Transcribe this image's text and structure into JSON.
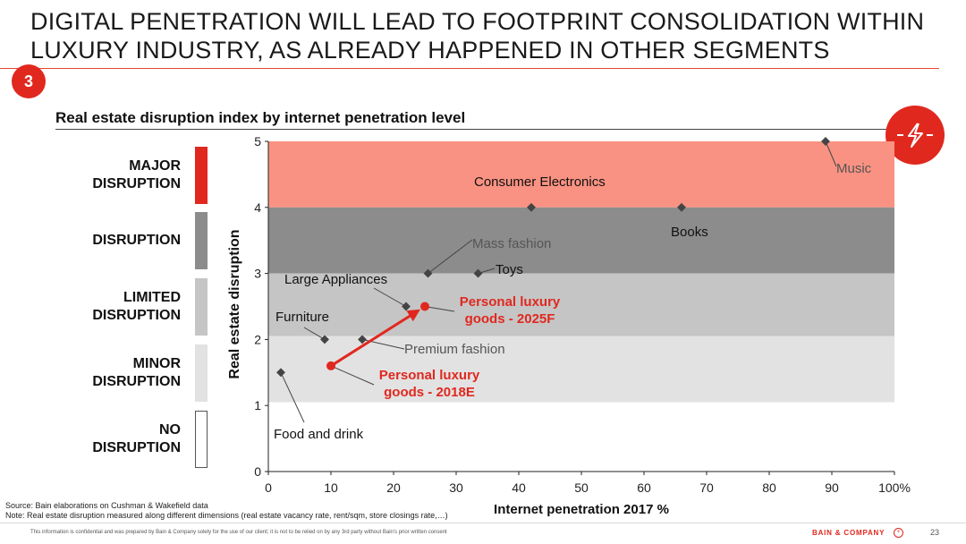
{
  "title": "DIGITAL PENETRATION WILL LEAD TO FOOTPRINT CONSOLIDATION WITHIN LUXURY INDUSTRY, AS ALREADY HAPPENED IN OTHER SEGMENTS",
  "section_number": "3",
  "icon": "disruption-lightning-icon",
  "colors": {
    "accent": "#e0281f",
    "major": "#f99282",
    "disruption": "#8c8c8c",
    "limited": "#c5c5c5",
    "minor": "#e2e2e2",
    "none": "#ffffff"
  },
  "legend": [
    {
      "label": "MAJOR\nDISRUPTION",
      "color": "#e0281f"
    },
    {
      "label": "DISRUPTION",
      "color": "#8c8c8c"
    },
    {
      "label": "LIMITED\nDISRUPTION",
      "color": "#c5c5c5"
    },
    {
      "label": "MINOR\nDISRUPTION",
      "color": "#e2e2e2"
    },
    {
      "label": "NO\nDISRUPTION",
      "color": "#ffffff"
    }
  ],
  "chart_data": {
    "type": "scatter",
    "title": "Real estate disruption index by internet penetration level",
    "xlabel": "Internet penetration 2017 %",
    "ylabel": "Real estate disruption",
    "xlim": [
      0,
      100
    ],
    "ylim": [
      0,
      5
    ],
    "x_ticks": [
      "0",
      "10",
      "20",
      "30",
      "40",
      "50",
      "60",
      "70",
      "80",
      "90",
      "100%"
    ],
    "y_ticks": [
      "0",
      "1",
      "2",
      "3",
      "4",
      "5"
    ],
    "bands": [
      {
        "from": 4.0,
        "to": 5.0,
        "color": "#f99282"
      },
      {
        "from": 3.0,
        "to": 4.0,
        "color": "#8c8c8c"
      },
      {
        "from": 2.05,
        "to": 3.0,
        "color": "#c5c5c5"
      },
      {
        "from": 1.05,
        "to": 2.05,
        "color": "#e2e2e2"
      }
    ],
    "points": [
      {
        "label": "Music",
        "x": 89,
        "y": 5.0
      },
      {
        "label": "Consumer Electronics",
        "x": 42,
        "y": 4.0
      },
      {
        "label": "Books",
        "x": 66,
        "y": 4.0
      },
      {
        "label": "Mass fashion",
        "x": 25.5,
        "y": 3.0
      },
      {
        "label": "Toys",
        "x": 33.5,
        "y": 3.0
      },
      {
        "label": "Large Appliances",
        "x": 22,
        "y": 2.5
      },
      {
        "label": "Furniture",
        "x": 9,
        "y": 2.0
      },
      {
        "label": "Premium fashion",
        "x": 15,
        "y": 2.0
      },
      {
        "label": "Food and drink",
        "x": 2,
        "y": 1.5
      }
    ],
    "highlight": [
      {
        "label": "Personal luxury goods - 2018E",
        "x": 10,
        "y": 1.6
      },
      {
        "label": "Personal luxury goods - 2025F",
        "x": 25,
        "y": 2.5
      }
    ]
  },
  "footer": {
    "source": "Source: Bain elaborations on Cushman & Wakefield data",
    "note": "Note: Real estate disruption measured along different dimensions (real estate vacancy rate, rent/sqm, store closings rate,…)",
    "confidential": "This information is confidential and was prepared by Bain & Company solely for the use of our client; it is not to be relied on by any 3rd party without Bain's prior written consent",
    "brand": "BAIN & COMPANY",
    "page": "23"
  }
}
